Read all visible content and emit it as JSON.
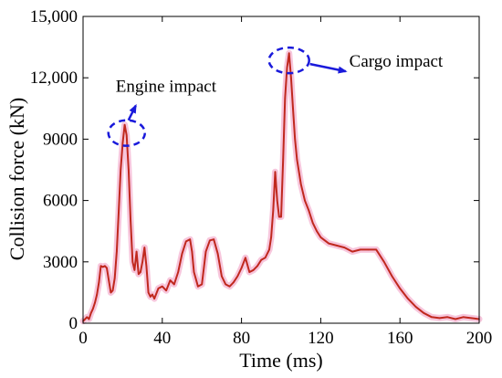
{
  "chart_data": {
    "type": "line",
    "title": "",
    "xlabel": "Time (ms)",
    "ylabel": "Collision force (kN)",
    "xlim": [
      0,
      200
    ],
    "ylim": [
      0,
      15000
    ],
    "x_ticks": [
      0,
      40,
      80,
      120,
      160,
      200
    ],
    "x_tick_labels": [
      "0",
      "40",
      "80",
      "120",
      "160",
      "200"
    ],
    "y_ticks": [
      0,
      3000,
      6000,
      9000,
      12000,
      15000
    ],
    "y_tick_labels": [
      "0",
      "3000",
      "6000",
      "9000",
      "12,000",
      "15,000"
    ],
    "grid": false,
    "legend": "none",
    "colors": {
      "line": "#c0281e",
      "glow": "#f7c6dc",
      "annotation": "#1a1adb"
    },
    "annotations": [
      {
        "text": "Engine impact",
        "x": 22,
        "y": 9300
      },
      {
        "text": "Cargo impact",
        "x": 104,
        "y": 12850
      }
    ],
    "series": [
      {
        "x": [
          0,
          1,
          2,
          3,
          4,
          5,
          6,
          7,
          8,
          9,
          10,
          11,
          12,
          13,
          14,
          15,
          16,
          17,
          18,
          19,
          20,
          21,
          22,
          23,
          24,
          25,
          26,
          27,
          28,
          29,
          30,
          31,
          32,
          33,
          34,
          35,
          36,
          38,
          40,
          42,
          44,
          46,
          48,
          50,
          52,
          54,
          55,
          56,
          58,
          60,
          62,
          64,
          66,
          68,
          70,
          72,
          74,
          76,
          78,
          80,
          82,
          84,
          86,
          88,
          90,
          92,
          94,
          95,
          96,
          97,
          98,
          99,
          100,
          101,
          102,
          103,
          104,
          105,
          106,
          107,
          108,
          110,
          112,
          114,
          116,
          118,
          120,
          124,
          128,
          132,
          136,
          140,
          144,
          148,
          152,
          156,
          160,
          164,
          168,
          172,
          176,
          180,
          184,
          188,
          192,
          196,
          200
        ],
        "y": [
          100,
          200,
          300,
          200,
          500,
          700,
          1000,
          1400,
          2000,
          2800,
          2750,
          2800,
          2700,
          2100,
          1500,
          1600,
          2200,
          3500,
          5500,
          7500,
          8800,
          9700,
          9200,
          7500,
          5000,
          3000,
          2600,
          3500,
          2400,
          2500,
          3000,
          3700,
          2800,
          1500,
          1300,
          1400,
          1200,
          1700,
          1800,
          1600,
          2100,
          1900,
          2500,
          3400,
          4000,
          4100,
          3500,
          2500,
          1800,
          1900,
          3500,
          4050,
          4100,
          3400,
          2300,
          1900,
          1800,
          2000,
          2300,
          2700,
          3200,
          2500,
          2600,
          2800,
          3100,
          3200,
          3600,
          4200,
          5500,
          7400,
          6000,
          5200,
          5200,
          8000,
          11000,
          12500,
          13200,
          12000,
          10500,
          9000,
          8000,
          6800,
          6000,
          5500,
          4900,
          4500,
          4200,
          3900,
          3800,
          3700,
          3500,
          3600,
          3600,
          3600,
          3000,
          2300,
          1700,
          1200,
          800,
          500,
          300,
          250,
          300,
          200,
          300,
          250,
          200
        ]
      }
    ]
  }
}
